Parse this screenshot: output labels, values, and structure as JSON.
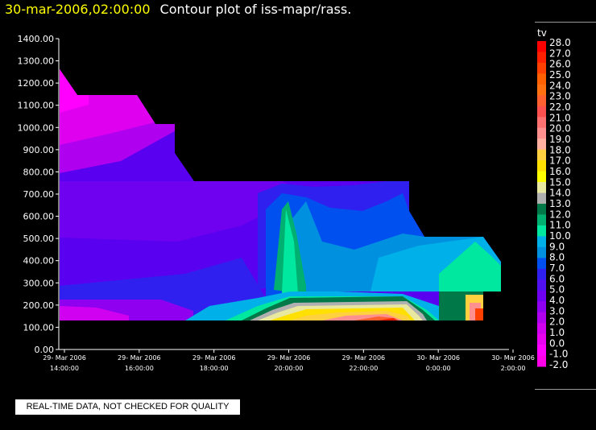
{
  "header": {
    "timestamp": "30-mar-2006,02:00:00",
    "title": "Contour plot of iss-mapr/rass."
  },
  "disclaimer": "REAL-TIME DATA, NOT CHECKED FOR QUALITY",
  "colors": {
    "background": "#000000",
    "title_timestamp": "#ffff00",
    "text": "#ffffff"
  },
  "chart_data": {
    "type": "heatmap",
    "title": "Contour plot of iss-mapr/rass.",
    "xlabel": "",
    "ylabel": "",
    "ylim": [
      0,
      1400
    ],
    "y_ticks": [
      "1400.00",
      "1300.00",
      "1200.00",
      "1100.00",
      "1000.00",
      "900.00",
      "800.00",
      "700.00",
      "600.00",
      "500.00",
      "400.00",
      "300.00",
      "200.00",
      "100.00",
      "0.00"
    ],
    "x_ticks": [
      {
        "date": "29- Mar 2006",
        "time": "14:00:00"
      },
      {
        "date": "29- Mar 2006",
        "time": "16:00:00"
      },
      {
        "date": "29- Mar 2006",
        "time": "18:00:00"
      },
      {
        "date": "29- Mar 2006",
        "time": "20:00:00"
      },
      {
        "date": "29- Mar 2006",
        "time": "22:00:00"
      },
      {
        "date": "30- Mar 2006",
        "time": "0:00:00"
      },
      {
        "date": "30- Mar 2006",
        "time": "2:00:00"
      }
    ],
    "colorbar": {
      "label": "tv",
      "levels": [
        "28.0",
        "27.0",
        "26.0",
        "25.0",
        "24.0",
        "23.0",
        "22.0",
        "21.0",
        "20.0",
        "19.0",
        "18.0",
        "17.0",
        "16.0",
        "15.0",
        "14.0",
        "13.0",
        "12.0",
        "11.0",
        "10.0",
        "9.0",
        "8.0",
        "7.0",
        "6.0",
        "5.0",
        "4.0",
        "3.0",
        "2.0",
        "1.0",
        "0.0",
        "-1.0",
        "-2.0"
      ],
      "colors": [
        "#ff0000",
        "#ff2000",
        "#ff4000",
        "#ff6000",
        "#ff7010",
        "#ff6030",
        "#ff5050",
        "#ff7070",
        "#ff9090",
        "#ffb0a0",
        "#ffd040",
        "#ffe000",
        "#ffff00",
        "#e8e8a0",
        "#b0b0b0",
        "#007848",
        "#00b070",
        "#00e8a0",
        "#00b0e8",
        "#0090e0",
        "#0050f0",
        "#3020f0",
        "#5010f0",
        "#7000f0",
        "#9000f0",
        "#b000f0",
        "#d000f0",
        "#e800f0",
        "#ff00ff",
        "#ff00e8"
      ]
    },
    "grid": false
  }
}
